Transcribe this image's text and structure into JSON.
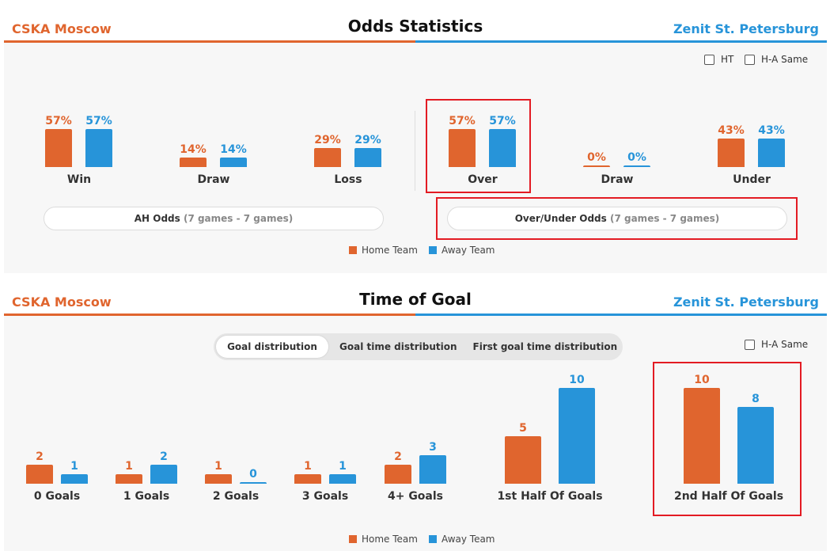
{
  "odds": {
    "home_team": "CSKA Moscow",
    "away_team": "Zenit St. Petersburg",
    "title": "Odds Statistics",
    "options": {
      "ht_label": "HT",
      "ha_same_label": "H-A Same"
    },
    "ah_groups": [
      {
        "label": "Win",
        "home": "57%",
        "away": "57%",
        "home_pct": 57,
        "away_pct": 57
      },
      {
        "label": "Draw",
        "home": "14%",
        "away": "14%",
        "home_pct": 14,
        "away_pct": 14
      },
      {
        "label": "Loss",
        "home": "29%",
        "away": "29%",
        "home_pct": 29,
        "away_pct": 29
      }
    ],
    "ou_groups": [
      {
        "label": "Over",
        "home": "57%",
        "away": "57%",
        "home_pct": 57,
        "away_pct": 57
      },
      {
        "label": "Draw",
        "home": "0%",
        "away": "0%",
        "home_pct": 0,
        "away_pct": 0
      },
      {
        "label": "Under",
        "home": "43%",
        "away": "43%",
        "home_pct": 43,
        "away_pct": 43
      }
    ],
    "ah_button": {
      "label": "AH Odds",
      "sub": "(7 games - 7 games)"
    },
    "ou_button": {
      "label": "Over/Under Odds",
      "sub": "(7 games - 7 games)"
    },
    "legend": {
      "home": "Home Team",
      "away": "Away Team"
    }
  },
  "goals": {
    "home_team": "CSKA Moscow",
    "away_team": "Zenit St. Petersburg",
    "title": "Time of Goal",
    "tabs": [
      "Goal distribution",
      "Goal time distribution",
      "First goal time distribution"
    ],
    "active_tab": "Goal distribution",
    "ha_same_label": "H-A Same",
    "legend": {
      "home": "Home Team",
      "away": "Away Team"
    }
  },
  "colors": {
    "home": "#e0652e",
    "away": "#2794d9",
    "highlight": "#e31b23"
  },
  "chart_data": [
    {
      "type": "bar",
      "categories": [
        "Win",
        "Draw",
        "Loss",
        "Over",
        "Draw",
        "Under"
      ],
      "series": [
        {
          "name": "Home Team",
          "values": [
            57,
            14,
            29,
            57,
            0,
            43
          ]
        },
        {
          "name": "Away Team",
          "values": [
            57,
            14,
            29,
            57,
            0,
            43
          ]
        }
      ]
    },
    {
      "type": "bar",
      "categories": [
        "0 Goals",
        "1 Goals",
        "2 Goals",
        "3 Goals",
        "4+ Goals",
        "1st Half Of Goals",
        "2nd Half Of Goals"
      ],
      "series": [
        {
          "name": "Home Team",
          "values": [
            2,
            1,
            1,
            1,
            2,
            5,
            10
          ]
        },
        {
          "name": "Away Team",
          "values": [
            1,
            2,
            0,
            1,
            3,
            10,
            8
          ]
        }
      ]
    }
  ]
}
